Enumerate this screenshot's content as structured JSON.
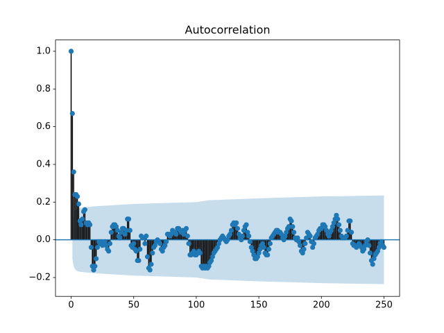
{
  "chart_data": {
    "type": "stem",
    "title": "Autocorrelation",
    "x": [
      0,
      1,
      2,
      3,
      4,
      5,
      6,
      7,
      8,
      9,
      10,
      11,
      12,
      13,
      14,
      15,
      16,
      17,
      18,
      19,
      20,
      21,
      22,
      23,
      24,
      25,
      26,
      27,
      28,
      29,
      30,
      31,
      32,
      33,
      34,
      35,
      36,
      37,
      38,
      39,
      40,
      41,
      42,
      43,
      44,
      45,
      46,
      47,
      48,
      49,
      50,
      51,
      52,
      53,
      54,
      55,
      56,
      57,
      58,
      59,
      60,
      61,
      62,
      63,
      64,
      65,
      66,
      67,
      68,
      69,
      70,
      71,
      72,
      73,
      74,
      75,
      76,
      77,
      78,
      79,
      80,
      81,
      82,
      83,
      84,
      85,
      86,
      87,
      88,
      89,
      90,
      91,
      92,
      93,
      94,
      95,
      96,
      97,
      98,
      99,
      100,
      101,
      102,
      103,
      104,
      105,
      106,
      107,
      108,
      109,
      110,
      111,
      112,
      113,
      114,
      115,
      116,
      117,
      118,
      119,
      120,
      121,
      122,
      123,
      124,
      125,
      126,
      127,
      128,
      129,
      130,
      131,
      132,
      133,
      134,
      135,
      136,
      137,
      138,
      139,
      140,
      141,
      142,
      143,
      144,
      145,
      146,
      147,
      148,
      149,
      150,
      151,
      152,
      153,
      154,
      155,
      156,
      157,
      158,
      159,
      160,
      161,
      162,
      163,
      164,
      165,
      166,
      167,
      168,
      169,
      170,
      171,
      172,
      173,
      174,
      175,
      176,
      177,
      178,
      179,
      180,
      181,
      182,
      183,
      184,
      185,
      186,
      187,
      188,
      189,
      190,
      191,
      192,
      193,
      194,
      195,
      196,
      197,
      198,
      199,
      200,
      201,
      202,
      203,
      204,
      205,
      206,
      207,
      208,
      209,
      210,
      211,
      212,
      213,
      214,
      215,
      216,
      217,
      218,
      219,
      220,
      221,
      222,
      223,
      224,
      225,
      226,
      227,
      228,
      229,
      230,
      231,
      232,
      233,
      234,
      235,
      236,
      237,
      238,
      239,
      240,
      241,
      242,
      243,
      244,
      245,
      246,
      247,
      248,
      249,
      250
    ],
    "values": [
      1.0,
      0.67,
      0.36,
      0.24,
      0.24,
      0.23,
      0.19,
      0.1,
      0.08,
      0.11,
      0.15,
      0.16,
      0.09,
      0.08,
      0.09,
      0.08,
      -0.04,
      -0.14,
      -0.16,
      -0.14,
      -0.1,
      -0.04,
      -0.01,
      -0.02,
      -0.01,
      -0.03,
      -0.02,
      -0.01,
      -0.03,
      -0.05,
      -0.06,
      -0.02,
      0.04,
      0.07,
      0.08,
      0.08,
      0.07,
      0.05,
      0.02,
      0.01,
      0.04,
      0.06,
      0.06,
      0.03,
      0.05,
      0.11,
      0.11,
      0.05,
      -0.03,
      -0.04,
      -0.02,
      -0.05,
      -0.06,
      -0.11,
      -0.11,
      -0.05,
      0.02,
      0.01,
      0.01,
      -0.02,
      0.02,
      -0.09,
      -0.15,
      -0.16,
      -0.13,
      -0.07,
      -0.04,
      -0.03,
      -0.01,
      0.0,
      -0.01,
      -0.02,
      -0.05,
      -0.06,
      -0.04,
      -0.03,
      -0.01,
      0.03,
      0.03,
      0.02,
      0.03,
      0.05,
      0.04,
      0.04,
      0.03,
      0.06,
      0.06,
      0.05,
      0.04,
      0.05,
      0.03,
      0.05,
      0.06,
      0.02,
      -0.02,
      -0.08,
      -0.08,
      -0.07,
      -0.06,
      -0.08,
      -0.08,
      -0.07,
      -0.06,
      -0.07,
      -0.14,
      -0.15,
      -0.14,
      -0.15,
      -0.14,
      -0.15,
      -0.14,
      -0.12,
      -0.11,
      -0.09,
      -0.07,
      -0.06,
      -0.05,
      -0.04,
      -0.02,
      0.0,
      0.01,
      0.02,
      0.01,
      0.0,
      -0.01,
      0.0,
      0.02,
      0.03,
      0.05,
      0.08,
      0.09,
      0.08,
      0.09,
      0.06,
      0.03,
      0.01,
      0.0,
      0.02,
      0.05,
      0.07,
      0.08,
      0.04,
      0.02,
      -0.01,
      -0.04,
      -0.06,
      -0.08,
      -0.1,
      -0.1,
      -0.09,
      -0.07,
      -0.05,
      -0.03,
      -0.02,
      -0.04,
      -0.07,
      -0.08,
      -0.08,
      -0.05,
      -0.02,
      0.01,
      0.02,
      0.03,
      0.04,
      0.05,
      0.05,
      0.04,
      0.04,
      0.03,
      0.01,
      0.0,
      0.02,
      0.04,
      0.06,
      0.07,
      0.11,
      0.1,
      0.07,
      0.04,
      0.01,
      0.0,
      0.01,
      -0.01,
      -0.03,
      -0.06,
      -0.07,
      -0.05,
      -0.02,
      0.01,
      0.04,
      0.03,
      0.02,
      -0.01,
      -0.04,
      -0.02,
      0.01,
      0.02,
      0.03,
      0.05,
      0.06,
      0.06,
      0.08,
      0.08,
      0.07,
      0.05,
      0.03,
      0.02,
      0.04,
      0.05,
      0.07,
      0.09,
      0.11,
      0.13,
      0.11,
      0.08,
      0.05,
      0.02,
      0.01,
      0.01,
      0.01,
      0.02,
      0.05,
      0.1,
      0.1,
      0.04,
      -0.02,
      -0.03,
      -0.03,
      -0.04,
      -0.03,
      -0.02,
      -0.03,
      -0.04,
      -0.06,
      -0.05,
      -0.03,
      -0.01,
      0.0,
      -0.03,
      -0.07,
      -0.11,
      -0.13,
      -0.1,
      -0.08,
      -0.07,
      -0.06,
      -0.04,
      -0.02,
      -0.01,
      -0.03,
      -0.04
    ],
    "color": "#1f77b4",
    "stem_color": "#000000",
    "band_color": "#1f77b4",
    "band_lags": [
      1,
      2,
      3,
      4,
      6,
      10,
      20,
      50,
      100,
      110,
      150,
      200,
      250
    ],
    "band_upper": [
      0.1,
      0.14,
      0.155,
      0.162,
      0.168,
      0.172,
      0.178,
      0.19,
      0.2,
      0.21,
      0.22,
      0.23,
      0.235
    ],
    "band_lower": [
      -0.1,
      -0.14,
      -0.155,
      -0.162,
      -0.168,
      -0.172,
      -0.178,
      -0.19,
      -0.2,
      -0.21,
      -0.22,
      -0.23,
      -0.235
    ],
    "xlim": [
      -12.5,
      262.5
    ],
    "ylim": [
      -0.3,
      1.06
    ],
    "xticks": [
      0,
      50,
      100,
      150,
      200,
      250
    ],
    "yticks": [
      {
        "value": -0.2,
        "label": "−0.2"
      },
      {
        "value": 0.0,
        "label": "0.0"
      },
      {
        "value": 0.2,
        "label": "0.2"
      },
      {
        "value": 0.4,
        "label": "0.4"
      },
      {
        "value": 0.6,
        "label": "0.6"
      },
      {
        "value": 0.8,
        "label": "0.8"
      },
      {
        "value": 1.0,
        "label": "1.0"
      }
    ],
    "grid": false
  }
}
